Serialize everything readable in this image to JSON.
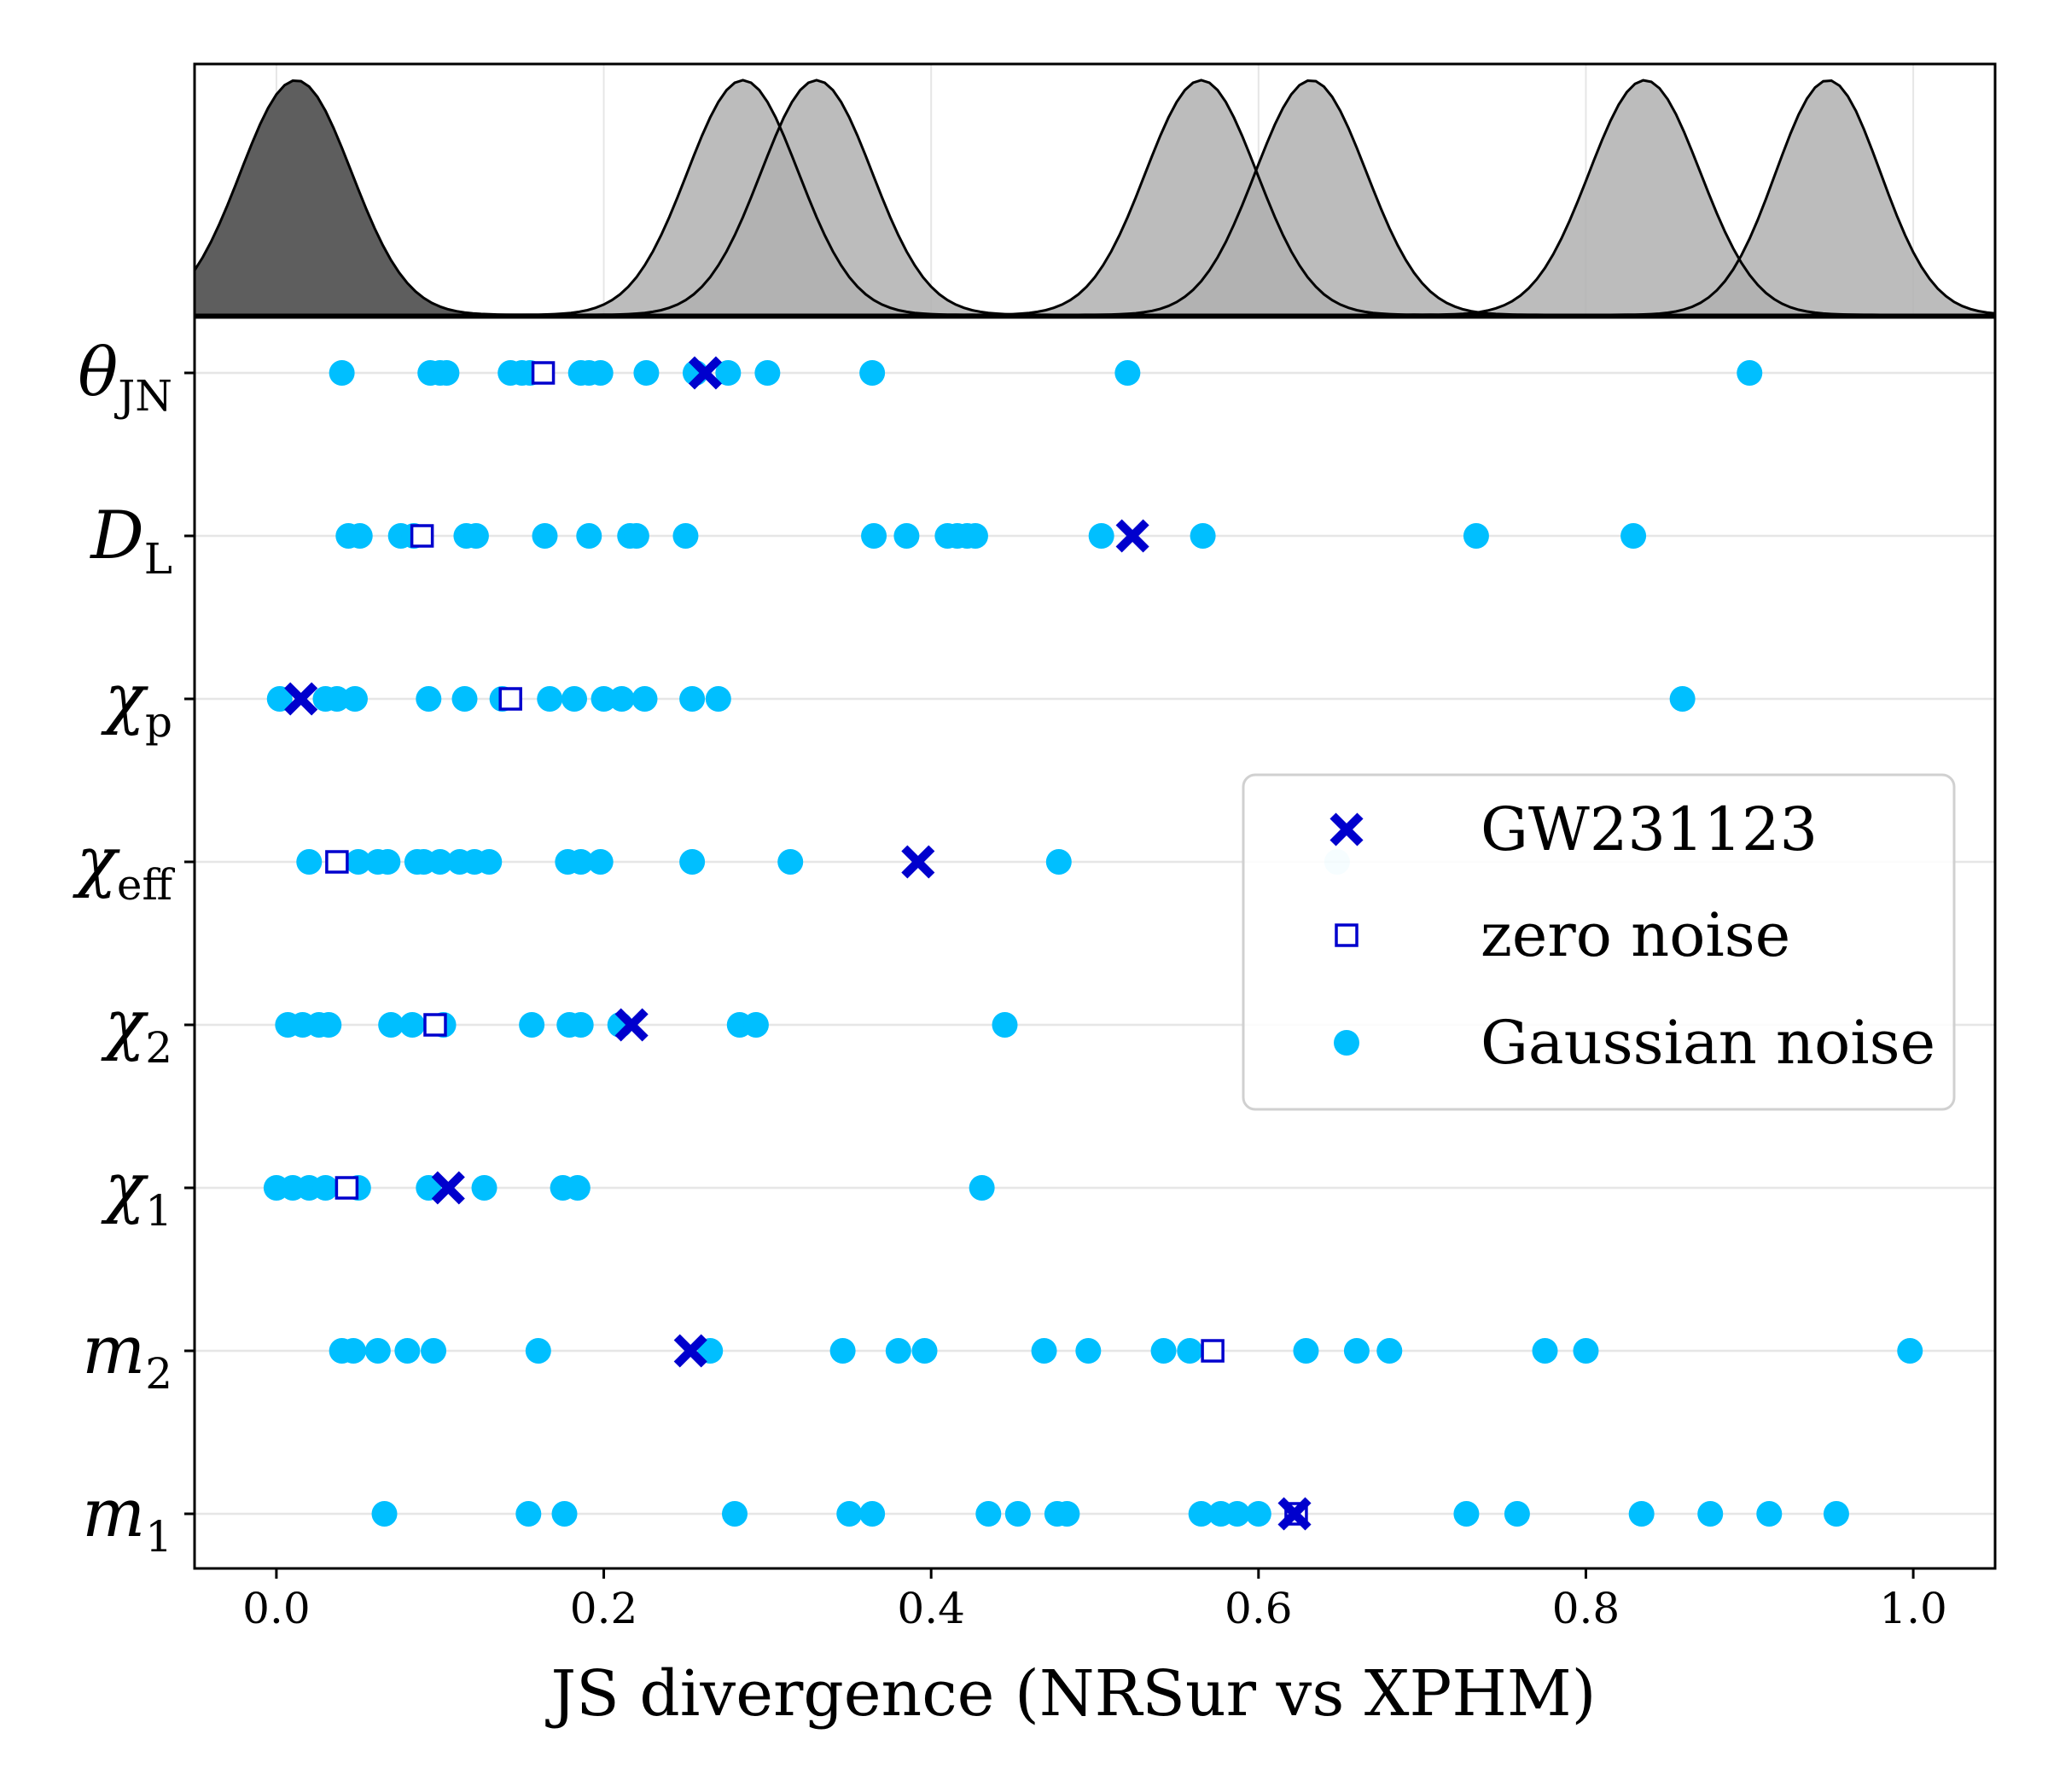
{
  "chart_data": {
    "type": "scatter",
    "xlabel": "JS divergence (NRSur vs XPHM)",
    "xlim": [
      -0.05,
      1.05
    ],
    "xticks": [
      0.0,
      0.2,
      0.4,
      0.6,
      0.8,
      1.0
    ],
    "xtick_labels": [
      "0.0",
      "0.2",
      "0.4",
      "0.6",
      "0.8",
      "1.0"
    ],
    "grid": true,
    "legend_position": "center-right",
    "legend": {
      "gw": "GW231123",
      "zero": "zero noise",
      "gauss": "Gaussian noise"
    },
    "colors": {
      "gaussian": "#00bfff",
      "marker": "#0000cd",
      "grid": "#e6e6e6",
      "density_dark": "#5e5e5e",
      "density_light": "#b0b0b0",
      "density_overlap": "#7f7f7f"
    },
    "parameters": [
      {
        "id": "theta_jn",
        "symbol": "θ",
        "sub": "JN",
        "gw231123": 0.262,
        "zero_noise": 0.163,
        "gaussian_noise": [
          0.04,
          0.094,
          0.1,
          0.104,
          0.143,
          0.15,
          0.155,
          0.186,
          0.191,
          0.198,
          0.226,
          0.256,
          0.276,
          0.3,
          0.364,
          0.52,
          0.9
        ]
      },
      {
        "id": "d_l",
        "symbol": "D",
        "sub": "L",
        "gw231123": 0.523,
        "zero_noise": 0.089,
        "gaussian_noise": [
          0.044,
          0.051,
          0.076,
          0.084,
          0.116,
          0.122,
          0.164,
          0.191,
          0.216,
          0.22,
          0.25,
          0.365,
          0.385,
          0.41,
          0.416,
          0.422,
          0.427,
          0.504,
          0.566,
          0.733,
          0.829
        ]
      },
      {
        "id": "chi_p",
        "symbol": "χ",
        "sub": "p",
        "gw231123": 0.015,
        "zero_noise": 0.143,
        "gaussian_noise": [
          0.002,
          0.03,
          0.037,
          0.048,
          0.093,
          0.115,
          0.138,
          0.167,
          0.182,
          0.2,
          0.211,
          0.225,
          0.254,
          0.27,
          0.859
        ]
      },
      {
        "id": "chi_eff",
        "symbol": "χ",
        "sub": "eff",
        "gw231123": 0.392,
        "zero_noise": 0.037,
        "gaussian_noise": [
          0.02,
          0.05,
          0.062,
          0.068,
          0.086,
          0.09,
          0.1,
          0.112,
          0.121,
          0.13,
          0.178,
          0.186,
          0.198,
          0.254,
          0.314,
          0.478,
          0.648
        ]
      },
      {
        "id": "chi_2",
        "symbol": "χ",
        "sub": "2",
        "gw231123": 0.217,
        "zero_noise": 0.097,
        "gaussian_noise": [
          0.007,
          0.016,
          0.026,
          0.032,
          0.07,
          0.083,
          0.102,
          0.156,
          0.179,
          0.186,
          0.21,
          0.283,
          0.293,
          0.445
        ]
      },
      {
        "id": "chi_1",
        "symbol": "χ",
        "sub": "1",
        "gw231123": 0.105,
        "zero_noise": 0.043,
        "gaussian_noise": [
          0.0,
          0.01,
          0.02,
          0.03,
          0.05,
          0.093,
          0.127,
          0.175,
          0.184,
          0.431
        ]
      },
      {
        "id": "m_2",
        "symbol": "m",
        "sub": "2",
        "gw231123": 0.253,
        "zero_noise": 0.572,
        "gaussian_noise": [
          0.04,
          0.047,
          0.062,
          0.08,
          0.096,
          0.16,
          0.265,
          0.346,
          0.38,
          0.396,
          0.469,
          0.496,
          0.542,
          0.558,
          0.629,
          0.66,
          0.68,
          0.775,
          0.8,
          0.998
        ]
      },
      {
        "id": "m_1",
        "symbol": "m",
        "sub": "1",
        "gw231123": 0.622,
        "zero_noise": 0.623,
        "gaussian_noise": [
          0.066,
          0.154,
          0.176,
          0.28,
          0.35,
          0.364,
          0.435,
          0.453,
          0.477,
          0.483,
          0.565,
          0.577,
          0.587,
          0.6,
          0.727,
          0.758,
          0.834,
          0.876,
          0.912,
          0.953
        ]
      }
    ],
    "top_panel": {
      "type": "density",
      "curves": [
        {
          "center": 0.012,
          "width": 0.034,
          "shade": "dark"
        },
        {
          "center": 0.285,
          "width": 0.034,
          "shade": "light"
        },
        {
          "center": 0.33,
          "width": 0.034,
          "shade": "light"
        },
        {
          "center": 0.565,
          "width": 0.034,
          "shade": "light"
        },
        {
          "center": 0.632,
          "width": 0.034,
          "shade": "light"
        },
        {
          "center": 0.836,
          "width": 0.034,
          "shade": "light"
        },
        {
          "center": 0.948,
          "width": 0.032,
          "shade": "light"
        }
      ]
    }
  }
}
